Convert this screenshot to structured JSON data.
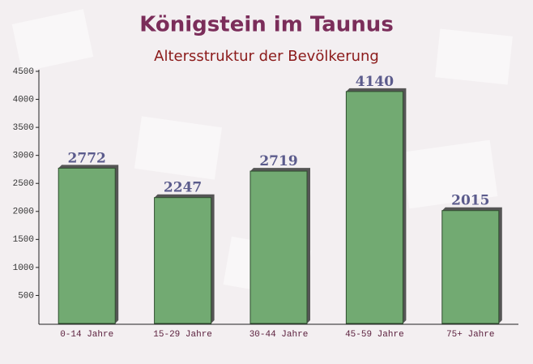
{
  "chart_data": {
    "type": "bar",
    "title": "Königstein im Taunus",
    "subtitle": "Altersstruktur der Bevölkerung",
    "categories": [
      "0-14 Jahre",
      "15-29 Jahre",
      "30-44 Jahre",
      "45-59 Jahre",
      "75+ Jahre"
    ],
    "values": [
      2772,
      2247,
      2719,
      4140,
      2015
    ],
    "color": "#6aa56a",
    "ylim": [
      0,
      4500
    ],
    "yticks": [
      500,
      1000,
      1500,
      2000,
      2500,
      3000,
      3500,
      4000,
      4500
    ]
  }
}
